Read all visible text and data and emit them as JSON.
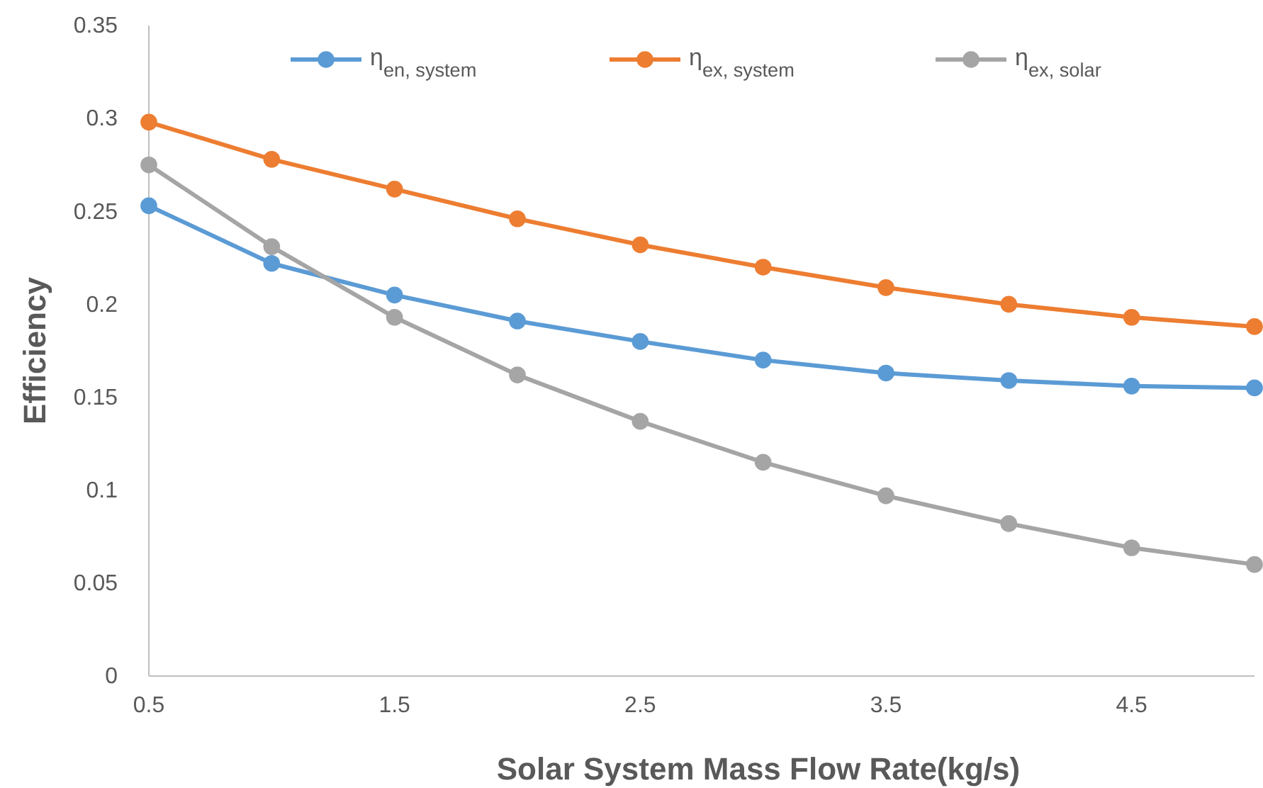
{
  "chart_data": {
    "type": "line",
    "xlabel": "Solar System Mass Flow Rate(kg/s)",
    "ylabel": "Efficiency",
    "x": [
      0.5,
      1,
      1.5,
      2,
      2.5,
      3,
      3.5,
      4,
      4.5,
      5
    ],
    "xlim": [
      0.5,
      5
    ],
    "xticks": [
      0.5,
      1.5,
      2.5,
      3.5,
      4.5
    ],
    "ylim": [
      0,
      0.35
    ],
    "yticks": [
      0,
      0.05,
      0.1,
      0.15,
      0.2,
      0.25,
      0.3,
      0.35
    ],
    "marker": "circle",
    "legend": "top",
    "grid": false,
    "series": [
      {
        "name": "η$_{en, system}$",
        "color": "#5b9bd5",
        "values": [
          0.253,
          0.222,
          0.205,
          0.191,
          0.18,
          0.17,
          0.163,
          0.159,
          0.156,
          0.155
        ]
      },
      {
        "name": "η$_{ex, system}$",
        "color": "#ed7d31",
        "values": [
          0.298,
          0.278,
          0.262,
          0.246,
          0.232,
          0.22,
          0.209,
          0.2,
          0.193,
          0.188
        ]
      },
      {
        "name": "η$_{ex, solar}$",
        "color": "#a5a5a5",
        "values": [
          0.275,
          0.231,
          0.193,
          0.162,
          0.137,
          0.115,
          0.097,
          0.082,
          0.069,
          0.06
        ]
      }
    ]
  }
}
